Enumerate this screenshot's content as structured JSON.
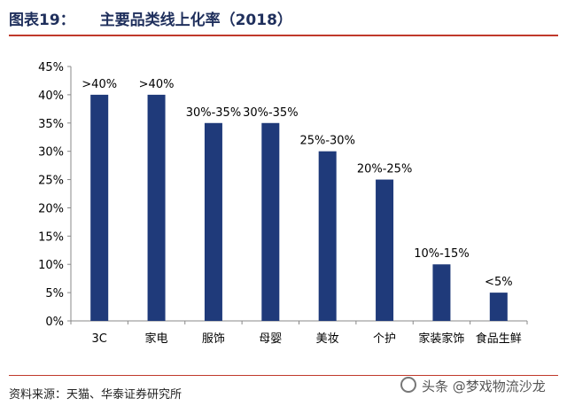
{
  "header": {
    "figure_number": "图表19：",
    "title": "主要品类线上化率（2018）"
  },
  "footer": {
    "source": "资料来源：天猫、华泰证券研究所",
    "watermark": "头条 @梦戏物流沙龙"
  },
  "colors": {
    "bar": "#1f3a7a",
    "accent_rule": "#c0392b",
    "title": "#1f2f5c"
  },
  "chart_data": {
    "type": "bar",
    "title": "主要品类线上化率（2018）",
    "xlabel": "",
    "ylabel": "",
    "categories": [
      "3C",
      "家电",
      "服饰",
      "母婴",
      "美妆",
      "个护",
      "家装家饰",
      "食品生鲜"
    ],
    "values": [
      40,
      40,
      35,
      35,
      30,
      25,
      10,
      5
    ],
    "data_labels": [
      ">40%",
      ">40%",
      "30%-35%",
      "30%-35%",
      "25%-30%",
      "20%-25%",
      "10%-15%",
      "<5%"
    ],
    "ylim": [
      0,
      45
    ],
    "yticks": [
      0,
      5,
      10,
      15,
      20,
      25,
      30,
      35,
      40,
      45
    ],
    "ytick_labels": [
      "0%",
      "5%",
      "10%",
      "15%",
      "20%",
      "25%",
      "30%",
      "35%",
      "40%",
      "45%"
    ],
    "grid": false,
    "legend": "none"
  }
}
